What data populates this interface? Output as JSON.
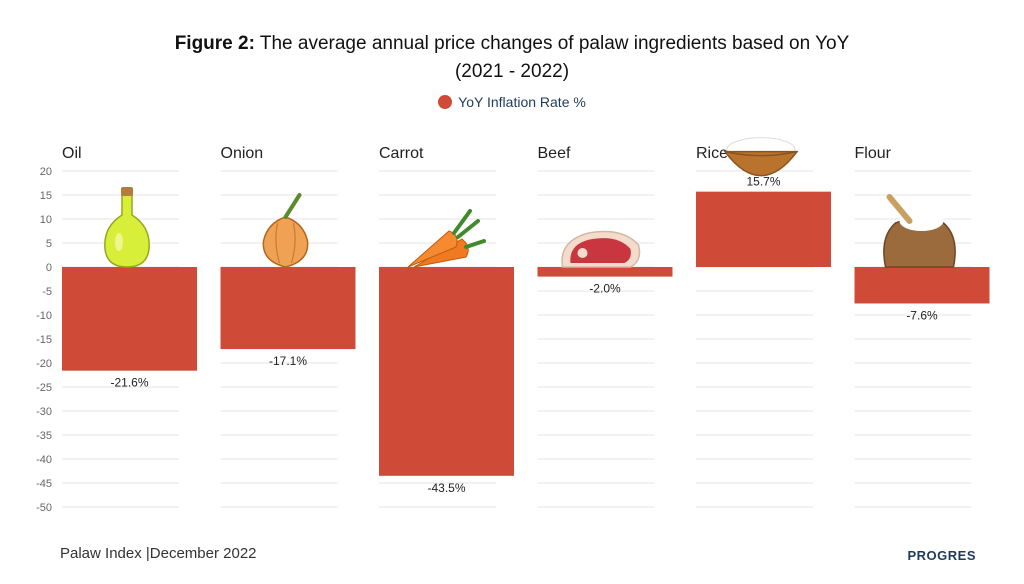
{
  "header": {
    "title_bold": "Figure 2:",
    "title_rest": "The average annual price changes of palaw ingredients based on YoY",
    "title_line2": "(2021 - 2022)"
  },
  "legend": {
    "label": "YoY Inflation Rate %",
    "color": "#cf4b38"
  },
  "footer": {
    "source": "Palaw Index |December 2022",
    "brand": "PROGRES"
  },
  "chart_data": {
    "type": "bar",
    "categories": [
      "Oil",
      "Onion",
      "Carrot",
      "Beef",
      "Rice",
      "Flour"
    ],
    "series": [
      {
        "name": "YoY Inflation Rate %",
        "values": [
          -21.6,
          -17.1,
          -43.5,
          -2.0,
          15.7,
          -7.6
        ]
      }
    ],
    "data_labels": [
      "-21.6%",
      "-17.1%",
      "-43.5%",
      "-2.0%",
      "15.7%",
      "-7.6%"
    ],
    "ylim": [
      -50,
      20
    ],
    "yticks": [
      20,
      15,
      10,
      5,
      0,
      -5,
      -10,
      -15,
      -20,
      -25,
      -30,
      -35,
      -40,
      -45,
      -50
    ],
    "grid": true,
    "legend_position": "top-center",
    "bar_color": "#cf4b38",
    "icons": [
      "oil-bottle-icon",
      "onion-icon",
      "carrot-icon",
      "beef-icon",
      "rice-bowl-icon",
      "flour-sack-icon"
    ]
  }
}
